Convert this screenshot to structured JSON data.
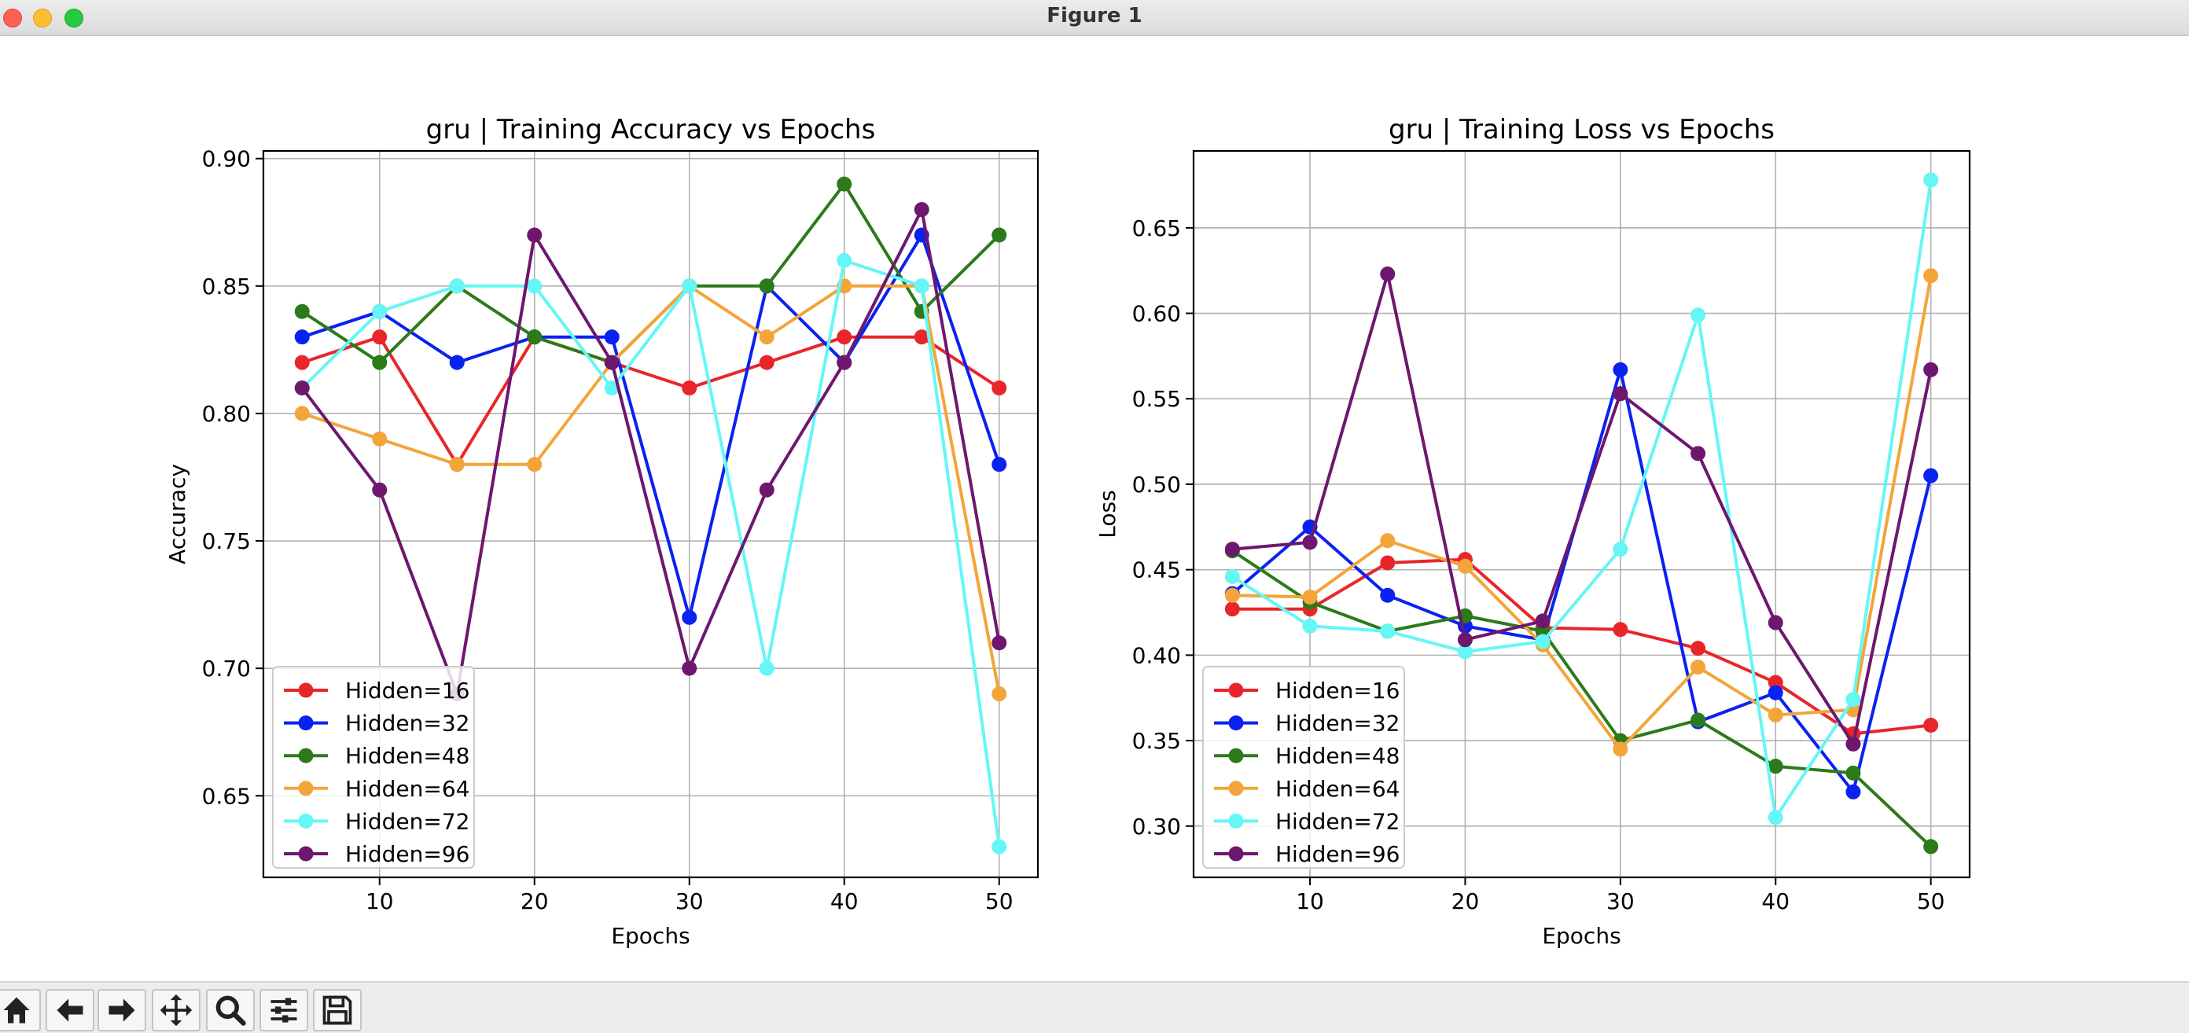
{
  "window": {
    "title": "Figure 1"
  },
  "colors": {
    "16": "#e8262a",
    "32": "#0a22f0",
    "48": "#2c7a1a",
    "64": "#f3a53a",
    "72": "#65f6f6",
    "96": "#6e176f"
  },
  "chart_data": [
    {
      "type": "line",
      "title": "gru | Training Accuracy vs Epochs",
      "xlabel": "Epochs",
      "ylabel": "Accuracy",
      "xlim": [
        2.5,
        52.5
      ],
      "ylim": [
        0.618,
        0.903
      ],
      "xticks": [
        10,
        20,
        30,
        40,
        50
      ],
      "xtick_labels": [
        "10",
        "20",
        "30",
        "40",
        "50"
      ],
      "yticks": [
        0.65,
        0.7,
        0.75,
        0.8,
        0.85,
        0.9
      ],
      "ytick_labels": [
        "0.65",
        "0.70",
        "0.75",
        "0.80",
        "0.85",
        "0.90"
      ],
      "grid": true,
      "legend": "lower left",
      "x": [
        5,
        10,
        15,
        20,
        25,
        30,
        35,
        40,
        45,
        50
      ],
      "series": [
        {
          "name": "Hidden=16",
          "key": "16",
          "values": [
            0.82,
            0.83,
            0.78,
            0.83,
            0.82,
            0.81,
            0.82,
            0.83,
            0.83,
            0.81
          ]
        },
        {
          "name": "Hidden=32",
          "key": "32",
          "values": [
            0.83,
            0.84,
            0.82,
            0.83,
            0.83,
            0.72,
            0.85,
            0.82,
            0.87,
            0.78
          ]
        },
        {
          "name": "Hidden=48",
          "key": "48",
          "values": [
            0.84,
            0.82,
            0.85,
            0.83,
            0.82,
            0.85,
            0.85,
            0.89,
            0.84,
            0.87
          ]
        },
        {
          "name": "Hidden=64",
          "key": "64",
          "values": [
            0.8,
            0.79,
            0.78,
            0.78,
            0.82,
            0.85,
            0.83,
            0.85,
            0.85,
            0.69
          ]
        },
        {
          "name": "Hidden=72",
          "key": "72",
          "values": [
            0.81,
            0.84,
            0.85,
            0.85,
            0.81,
            0.85,
            0.7,
            0.86,
            0.85,
            0.63
          ]
        },
        {
          "name": "Hidden=96",
          "key": "96",
          "values": [
            0.81,
            0.77,
            0.69,
            0.87,
            0.82,
            0.7,
            0.77,
            0.82,
            0.88,
            0.71
          ]
        }
      ]
    },
    {
      "type": "line",
      "title": "gru | Training Loss vs Epochs",
      "xlabel": "Epochs",
      "ylabel": "Loss",
      "xlim": [
        2.5,
        52.5
      ],
      "ylim": [
        0.27,
        0.695
      ],
      "xticks": [
        10,
        20,
        30,
        40,
        50
      ],
      "xtick_labels": [
        "10",
        "20",
        "30",
        "40",
        "50"
      ],
      "yticks": [
        0.3,
        0.35,
        0.4,
        0.45,
        0.5,
        0.55,
        0.6,
        0.65
      ],
      "ytick_labels": [
        "0.30",
        "0.35",
        "0.40",
        "0.45",
        "0.50",
        "0.55",
        "0.60",
        "0.65"
      ],
      "grid": true,
      "legend": "lower left",
      "x": [
        5,
        10,
        15,
        20,
        25,
        30,
        35,
        40,
        45,
        50
      ],
      "series": [
        {
          "name": "Hidden=16",
          "key": "16",
          "values": [
            0.427,
            0.427,
            0.454,
            0.456,
            0.416,
            0.415,
            0.404,
            0.384,
            0.354,
            0.359
          ]
        },
        {
          "name": "Hidden=32",
          "key": "32",
          "values": [
            0.436,
            0.475,
            0.435,
            0.417,
            0.409,
            0.567,
            0.361,
            0.378,
            0.32,
            0.505
          ]
        },
        {
          "name": "Hidden=48",
          "key": "48",
          "values": [
            0.461,
            0.431,
            0.414,
            0.423,
            0.414,
            0.35,
            0.362,
            0.335,
            0.331,
            0.288
          ]
        },
        {
          "name": "Hidden=64",
          "key": "64",
          "values": [
            0.435,
            0.434,
            0.467,
            0.452,
            0.406,
            0.345,
            0.393,
            0.365,
            0.368,
            0.622
          ]
        },
        {
          "name": "Hidden=72",
          "key": "72",
          "values": [
            0.446,
            0.417,
            0.414,
            0.402,
            0.408,
            0.462,
            0.599,
            0.305,
            0.374,
            0.678
          ]
        },
        {
          "name": "Hidden=96",
          "key": "96",
          "values": [
            0.462,
            0.466,
            0.623,
            0.409,
            0.42,
            0.553,
            0.518,
            0.419,
            0.348,
            0.567
          ]
        }
      ]
    }
  ],
  "toolbar": {
    "buttons": [
      {
        "name": "home-button",
        "icon": "home-icon"
      },
      {
        "name": "back-button",
        "icon": "arrow-left-icon"
      },
      {
        "name": "forward-button",
        "icon": "arrow-right-icon"
      },
      {
        "name": "pan-button",
        "icon": "move-icon"
      },
      {
        "name": "zoom-button",
        "icon": "magnifier-icon"
      },
      {
        "name": "configure-subplots-button",
        "icon": "sliders-icon"
      },
      {
        "name": "save-button",
        "icon": "floppy-disk-icon"
      }
    ]
  }
}
